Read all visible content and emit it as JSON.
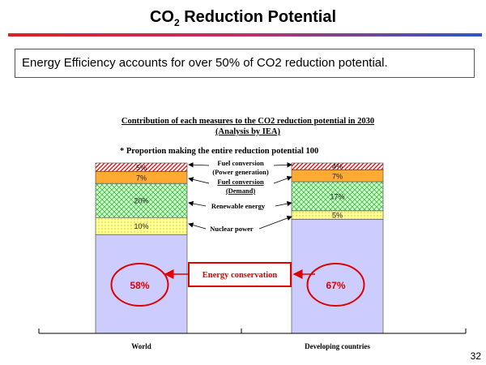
{
  "page": {
    "title_main": "CO",
    "title_sub": "2",
    "title_rest": " Reduction Potential",
    "callout": "Energy Efficiency accounts for over 50% of CO2 reduction potential.",
    "page_number": "32"
  },
  "chart_data": {
    "type": "bar",
    "stacked": true,
    "percent": true,
    "title": "Contribution of each measures to the CO2 reduction potential in 2030",
    "subtitle": "(Analysis by IEA)",
    "note": "* Proportion making the entire reduction potential 100",
    "categories": [
      "World",
      "Developing countries"
    ],
    "ylim": [
      0,
      100
    ],
    "series": [
      {
        "name": "Energy conservation",
        "values": [
          58,
          67
        ],
        "labels": [
          "58%",
          "67%"
        ],
        "color": "#ccccff",
        "pattern": "none"
      },
      {
        "name": "Nuclear power",
        "values": [
          10,
          5
        ],
        "labels": [
          "10%",
          "5%"
        ],
        "color": "#ffff99",
        "pattern": "dots"
      },
      {
        "name": "Renewable energy",
        "values": [
          20,
          17
        ],
        "labels": [
          "20%",
          "17%"
        ],
        "color": "#ccffcc",
        "pattern": "crosshatch"
      },
      {
        "name": "Fuel conversion (Demand)",
        "values": [
          7,
          7
        ],
        "labels": [
          "7%",
          "7%"
        ],
        "color": "#ffaa33",
        "pattern": "none"
      },
      {
        "name": "Fuel conversion (Power generation)",
        "values": [
          5,
          4
        ],
        "labels": [
          "5%",
          "4%"
        ],
        "color": "#ffffff",
        "pattern": "red-diagonal"
      }
    ],
    "annotations": {
      "fuel_power_line1": "Fuel conversion",
      "fuel_power_line2": "(Power generation)",
      "fuel_demand_line1": "Fuel conversion",
      "fuel_demand_line2": "(Demand)",
      "renewable": "Renewable energy",
      "nuclear": "Nuclear power",
      "conservation": "Energy conservation"
    },
    "colors": {
      "highlight": "#e00000"
    }
  }
}
